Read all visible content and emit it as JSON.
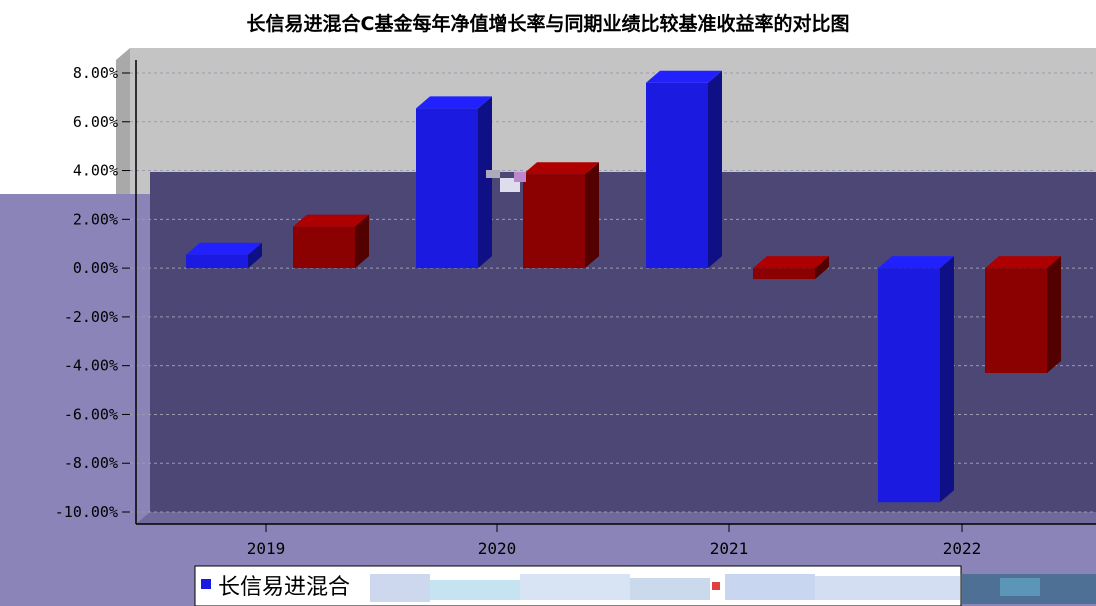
{
  "chart_data": {
    "type": "bar",
    "title": "长信易进混合C基金每年净值增长率与同期业绩比较基准收益率的对比图",
    "categories": [
      "2019",
      "2020",
      "2021",
      "2022"
    ],
    "y_ticks": [
      "8.00%",
      "6.00%",
      "4.00%",
      "2.00%",
      "0.00%",
      "-2.00%",
      "-4.00%",
      "-6.00%",
      "-8.00%",
      "-10.00%"
    ],
    "ylim": [
      -10,
      8
    ],
    "grid": true,
    "legend_position": "bottom",
    "series": [
      {
        "name": "长信易进混合",
        "color": "#1a1ae0",
        "values": [
          0.55,
          6.55,
          7.6,
          -9.6
        ]
      },
      {
        "name": "",
        "color": "#8b0000",
        "values": [
          1.7,
          3.85,
          -0.45,
          -4.3
        ]
      }
    ]
  }
}
